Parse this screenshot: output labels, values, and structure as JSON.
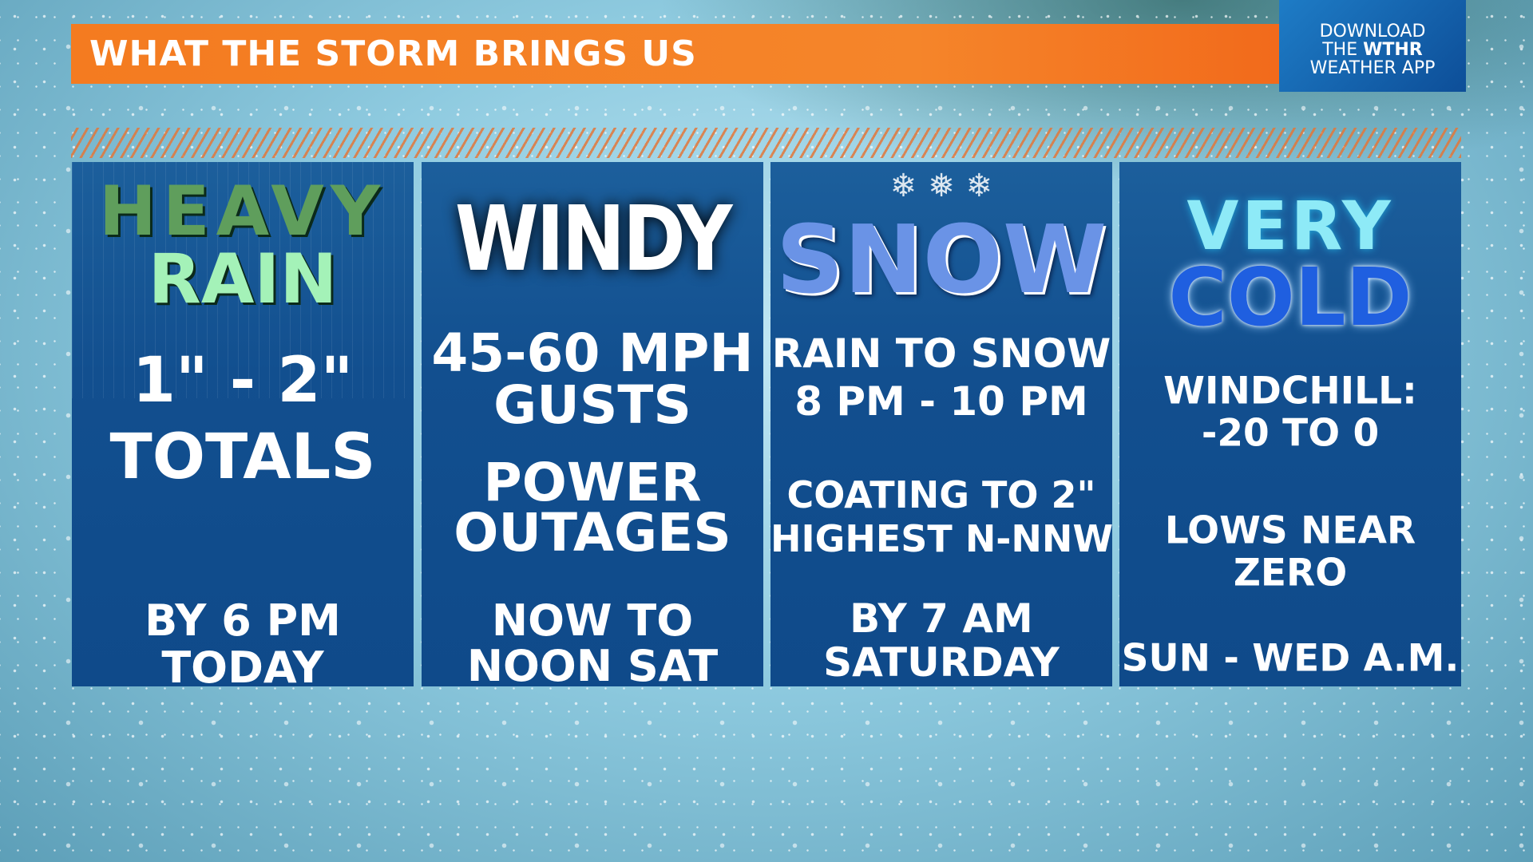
{
  "header": {
    "title": "WHAT THE STORM BRINGS US"
  },
  "app_promo": {
    "line1": "DOWNLOAD",
    "line2_prefix": "THE ",
    "line2_brand": "WTHR",
    "line3": "WEATHER APP"
  },
  "colors": {
    "header_orange": "#f47b20",
    "panel_blue": "#124f8f",
    "rain_green_dark": "#5a9a5a",
    "rain_green_light": "#9ef0b0",
    "snow_blue": "#5a86e0",
    "cold_blue": "#1f5fe0",
    "very_cyan": "#7fe8f5"
  },
  "panels": [
    {
      "title_lines": [
        "HEAVY",
        "RAIN"
      ],
      "detail_lines": [
        "1\" - 2\"",
        "TOTALS"
      ],
      "time_lines": [
        "BY 6 PM",
        "TODAY"
      ]
    },
    {
      "title_lines": [
        "WINDY"
      ],
      "detail_lines": [
        "45-60 MPH",
        "GUSTS",
        "POWER",
        "OUTAGES"
      ],
      "time_lines": [
        "NOW TO",
        "NOON SAT"
      ]
    },
    {
      "title_lines": [
        "SNOW"
      ],
      "detail_lines": [
        "RAIN TO SNOW",
        "8 PM - 10 PM",
        "COATING TO 2\"",
        "HIGHEST N-NNW"
      ],
      "time_lines": [
        "BY 7 AM",
        "SATURDAY"
      ]
    },
    {
      "title_lines": [
        "VERY",
        "COLD"
      ],
      "detail_lines": [
        "WINDCHILL:",
        "-20 TO 0",
        "LOWS NEAR",
        "ZERO"
      ],
      "time_lines": [
        "SUN - WED A.M."
      ]
    }
  ]
}
